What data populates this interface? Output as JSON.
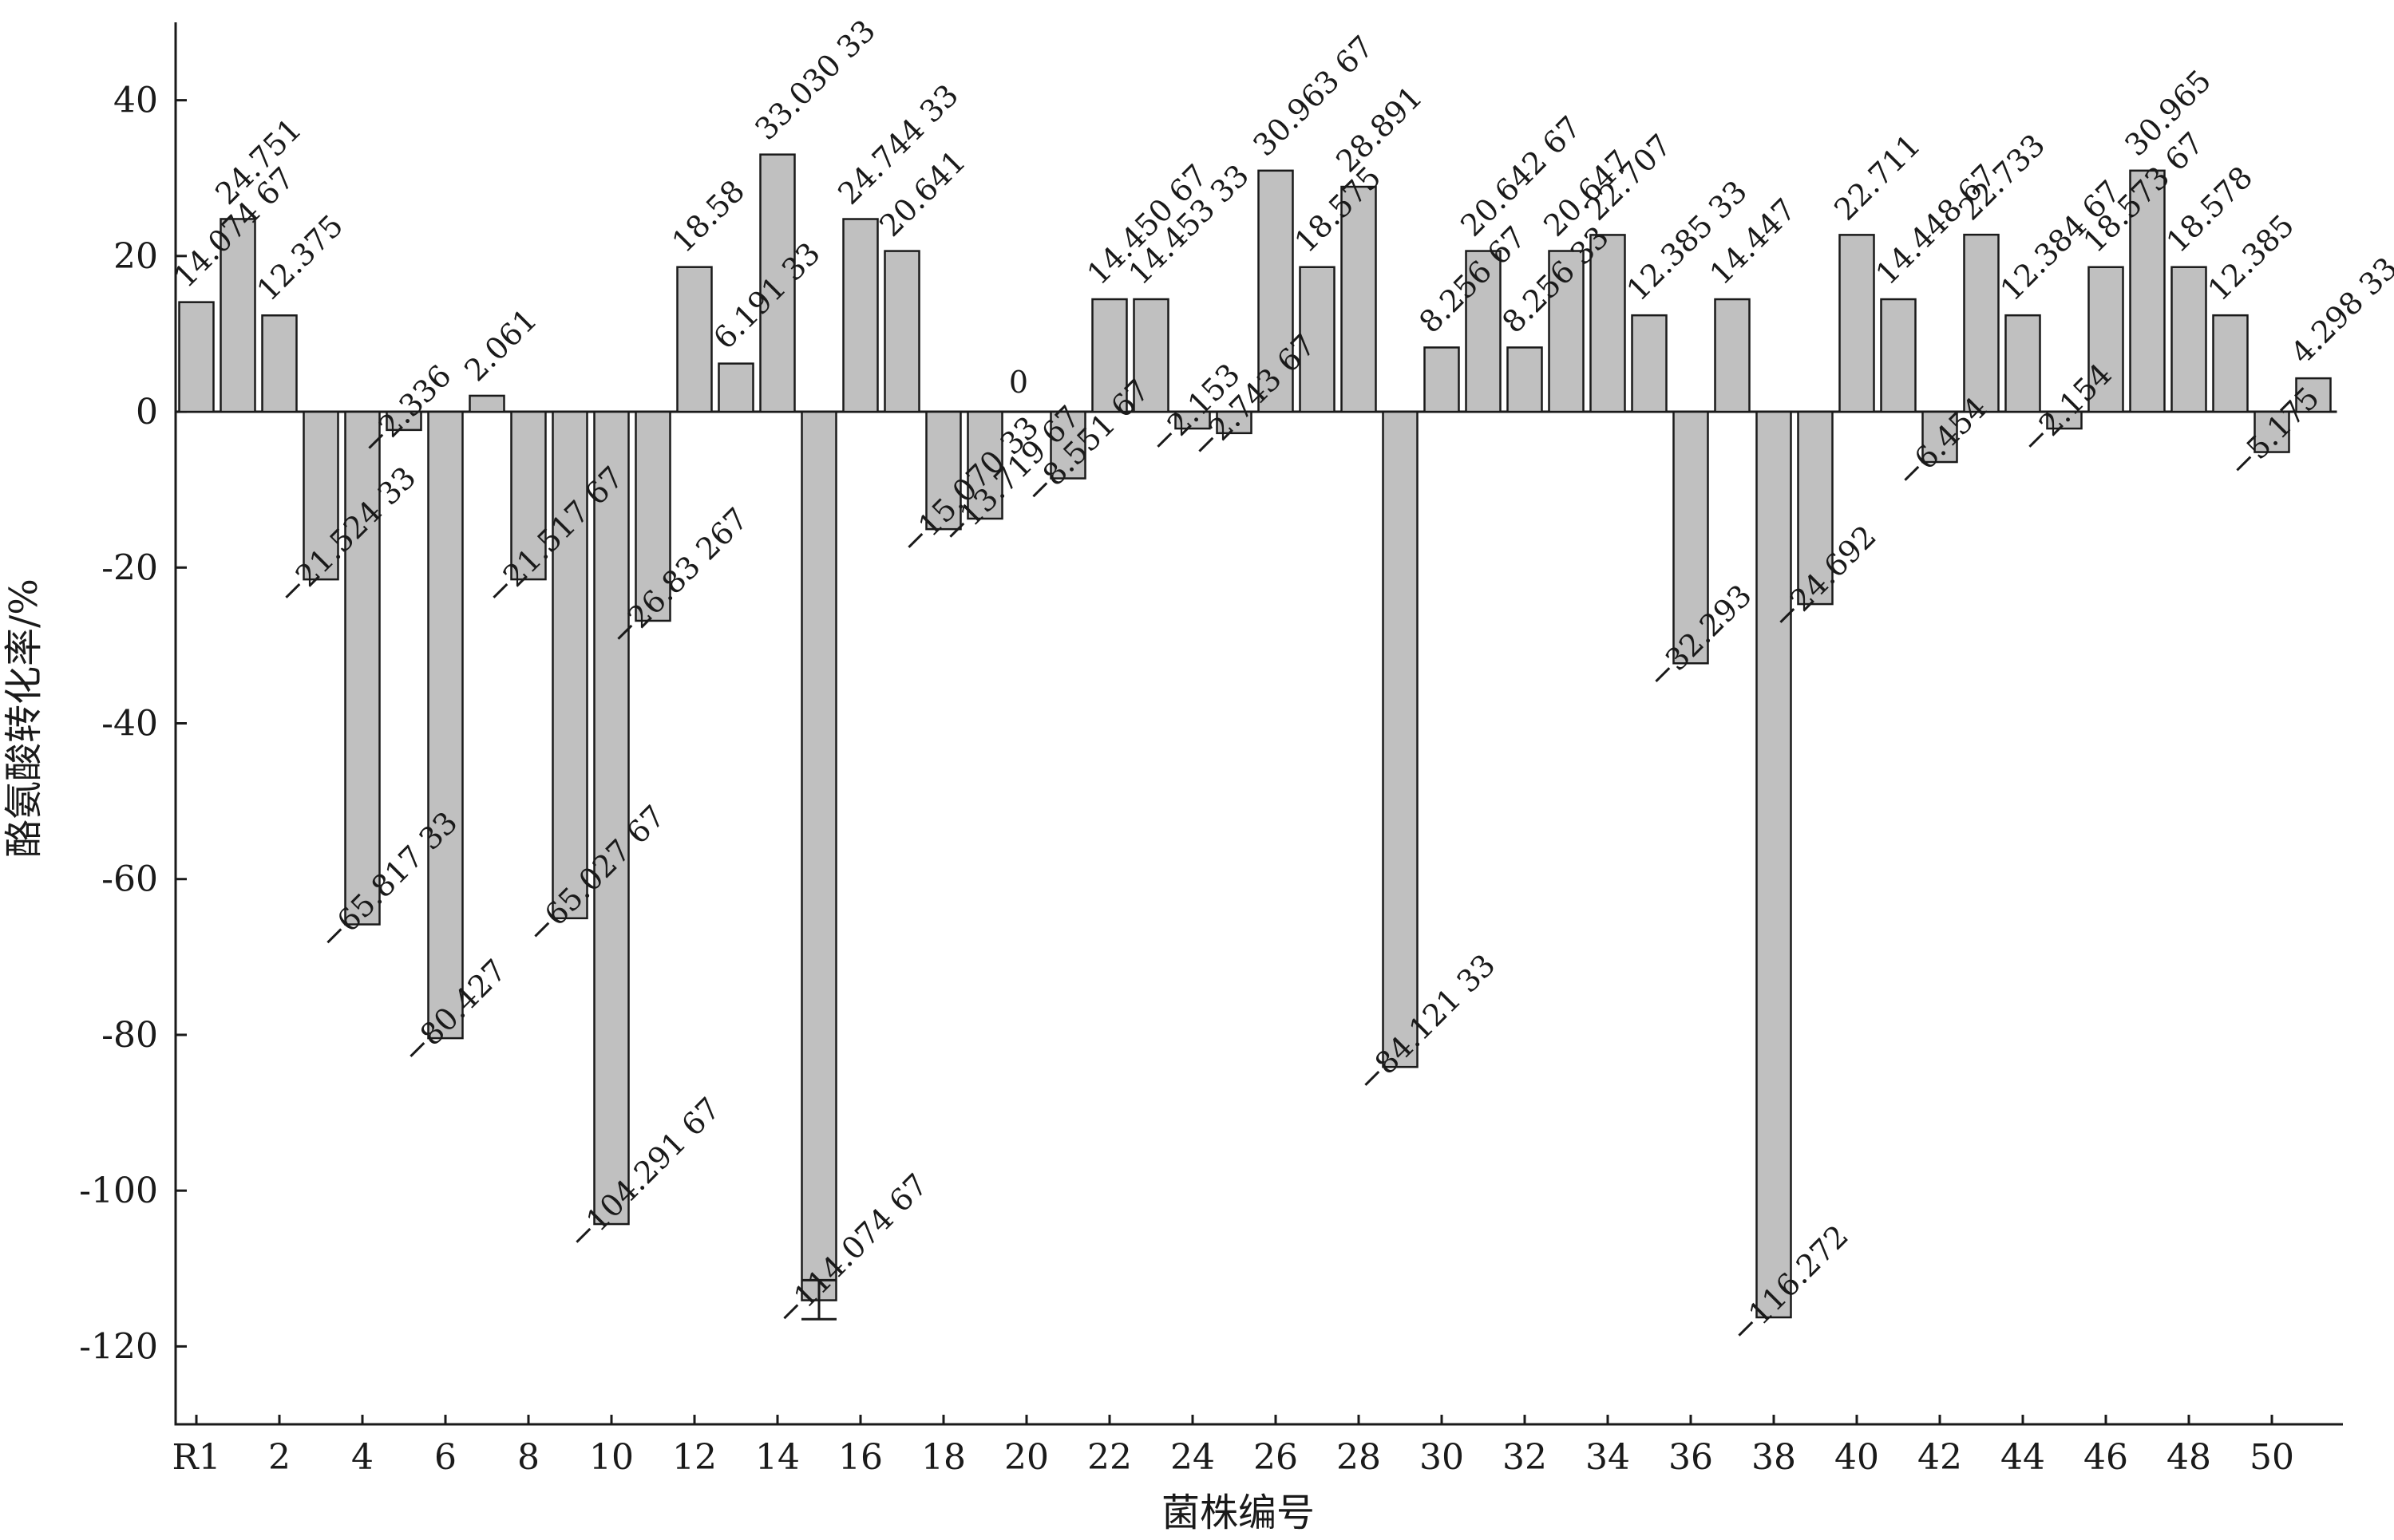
{
  "chart_data": {
    "type": "bar",
    "xlabel": "菌株编号",
    "ylabel": "酪氨酸转化率/%",
    "ylim": [
      -130,
      50
    ],
    "yticks": [
      40,
      20,
      0,
      -20,
      -40,
      -60,
      -80,
      -100,
      -120
    ],
    "ytick_labels": [
      "40",
      "20",
      "0",
      "-20",
      "-40",
      "-60",
      "-80",
      "-100",
      "-120"
    ],
    "xtick_labels": [
      "R1",
      "2",
      "4",
      "6",
      "8",
      "10",
      "12",
      "14",
      "16",
      "18",
      "20",
      "22",
      "24",
      "26",
      "28",
      "30",
      "32",
      "34",
      "36",
      "38",
      "40",
      "42",
      "44",
      "46",
      "48",
      "50"
    ],
    "categories": [
      "R1",
      "1",
      "2",
      "3",
      "4",
      "5",
      "6",
      "7",
      "8",
      "9",
      "10",
      "11",
      "12",
      "13",
      "14",
      "15",
      "16",
      "17",
      "18",
      "19",
      "20",
      "21",
      "22",
      "23",
      "24",
      "25",
      "26",
      "27",
      "28",
      "29",
      "30",
      "31",
      "32",
      "33",
      "34",
      "35",
      "36",
      "37",
      "38",
      "39",
      "40",
      "41",
      "42",
      "43",
      "44",
      "45",
      "46",
      "47",
      "48",
      "49",
      "50",
      "51"
    ],
    "values": [
      14.07467,
      24.751,
      12.375,
      -21.52433,
      -65.81733,
      -2.336,
      -80.427,
      2.061,
      -21.51767,
      -65.02767,
      -104.29167,
      -26.83267,
      18.58,
      6.19133,
      33.03033,
      -114.07467,
      24.74433,
      20.641,
      -15.07033,
      -13.71967,
      0,
      -8.55167,
      14.45067,
      14.45333,
      -2.153,
      -2.74367,
      30.96367,
      18.575,
      28.891,
      -84.12133,
      8.25667,
      20.64267,
      8.25633,
      20.647,
      22.707,
      12.38533,
      -32.293,
      14.447,
      -116.272,
      -24.692,
      22.711,
      14.44867,
      -6.454,
      22.733,
      12.38467,
      -2.154,
      18.57367,
      30.965,
      18.578,
      12.385,
      -5.175,
      4.29833
    ],
    "labels": [
      "14.074 67",
      "24.751",
      "12.375",
      "−21.524 33",
      "−65.817 33",
      "−2.336",
      "−80.427",
      "2.061",
      "−21.517 67",
      "−65.027 67",
      "−104.291 67",
      "−26.83 267",
      "18.58",
      "6.191 33",
      "33.030 33",
      "−114.074 67",
      "24.744 33",
      "20.641",
      "−15.070 33",
      "−13.719 67",
      "0",
      "−8.551 67",
      "14.450 67",
      "14.453 33",
      "−2.153",
      "−2.743 67",
      "30.963 67",
      "18.575",
      "28.891",
      "−84.121 33",
      "8.256 67",
      "20.642 67",
      "8.256 33",
      "20.647",
      "22.707",
      "12.385 33",
      "−32.293",
      "14.447",
      "−116.272",
      "−24.692",
      "22.711",
      "14.448 67",
      "−6.454",
      "22.733",
      "12.384 67",
      "−2.154",
      "18.573 67",
      "30.965",
      "18.578",
      "12.385",
      "−5.175",
      "4.298 33"
    ],
    "error_bars": [
      {
        "category": "15",
        "low": -116.5,
        "high": -111.5
      }
    ],
    "colors": {
      "bar_fill": "#c0c0c0",
      "stroke": "#1a1a1a"
    }
  }
}
